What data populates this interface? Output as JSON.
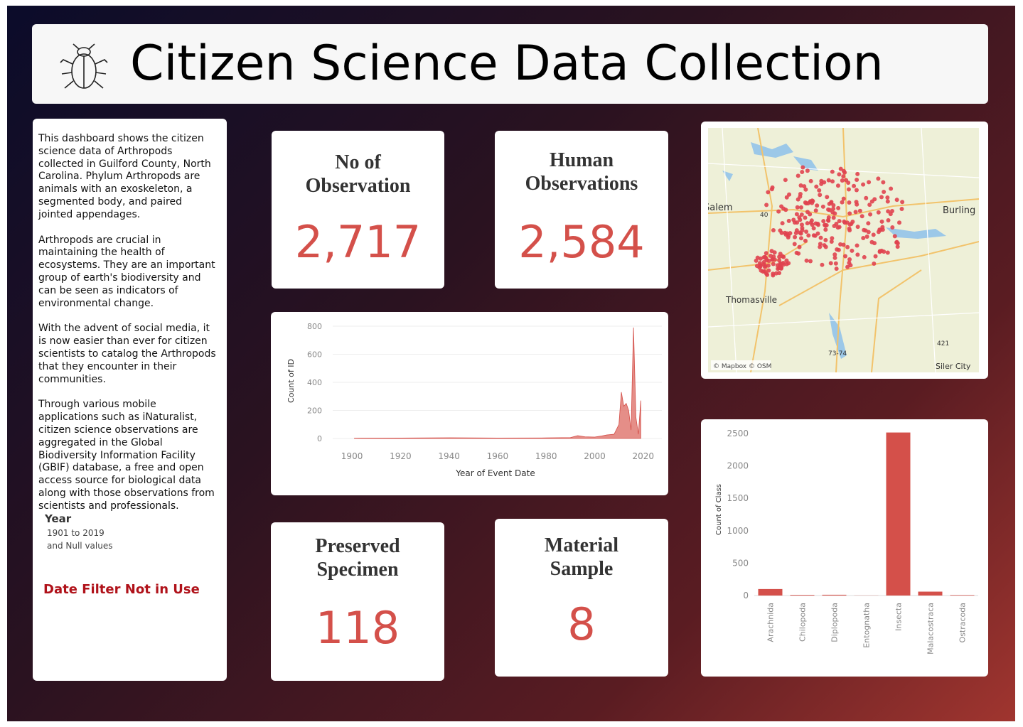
{
  "header": {
    "title": "Citizen Science Data Collection"
  },
  "description": {
    "paragraphs": [
      "This dashboard shows the citizen science data of Arthropods collected in Guilford County, North Carolina. Phylum Arthropods are animals with an exoskeleton, a segmented body, and paired jointed appendages.",
      "Arthropods are crucial in maintaining the health of ecosystems. They are an important group of earth's biodiversity and can be seen as indicators of environmental change.",
      "With the advent of social media, it is now easier than ever for citizen scientists to catalog the Arthropods that they encounter in their communities.",
      "Through various mobile applications such as iNaturalist, citizen science observations are aggregated in the Global Biodiversity Information Facility (GBIF) database, a free and open access source for biological data along with those observations from scientists and professionals."
    ]
  },
  "filter": {
    "label": "Year",
    "range": "1901 to 2019",
    "nulls": "and Null values",
    "status": "Date Filter Not in Use"
  },
  "kpis": [
    {
      "title": "No of Observation",
      "value": "2,717"
    },
    {
      "title": "Human Observations",
      "value": "2,584"
    },
    {
      "title": "Preserved Specimen",
      "value": "118"
    },
    {
      "title": "Material Sample",
      "value": "8"
    }
  ],
  "map": {
    "labels": [
      "Salem",
      "Burling",
      "Thomasville",
      "Siler City",
      "40",
      "73-74",
      "421"
    ],
    "credit": "© Mapbox © OSM"
  },
  "chart_data": [
    {
      "type": "area",
      "x": [
        1901,
        1920,
        1940,
        1960,
        1980,
        1990,
        1993,
        1996,
        2000,
        2003,
        2005,
        2008,
        2010,
        2011,
        2012,
        2013,
        2014,
        2015,
        2016,
        2017,
        2018,
        2019
      ],
      "values": [
        2,
        3,
        5,
        3,
        4,
        6,
        20,
        12,
        10,
        18,
        25,
        30,
        100,
        330,
        230,
        250,
        200,
        60,
        790,
        150,
        30,
        270
      ],
      "color": "#e07a73",
      "xlim": [
        1895,
        2023
      ],
      "ylim": [
        0,
        820
      ],
      "xticks": [
        1900,
        1920,
        1940,
        1960,
        1980,
        2000,
        2020
      ],
      "yticks": [
        0,
        200,
        400,
        600,
        800
      ],
      "x_label": "Year of Event Date",
      "y_label": "Count of ID",
      "grid": true
    },
    {
      "type": "bar",
      "categories": [
        "Arachnida",
        "Chilopoda",
        "Diplopoda",
        "Entognatha",
        "Insecta",
        "Malacostraca",
        "Ostracoda"
      ],
      "values": [
        100,
        10,
        12,
        2,
        2515,
        60,
        8
      ],
      "color": "#d4504a",
      "ylim": [
        0,
        2550
      ],
      "yticks": [
        0,
        500,
        1000,
        1500,
        2000,
        2500
      ],
      "y_label": "Count of Class"
    }
  ]
}
